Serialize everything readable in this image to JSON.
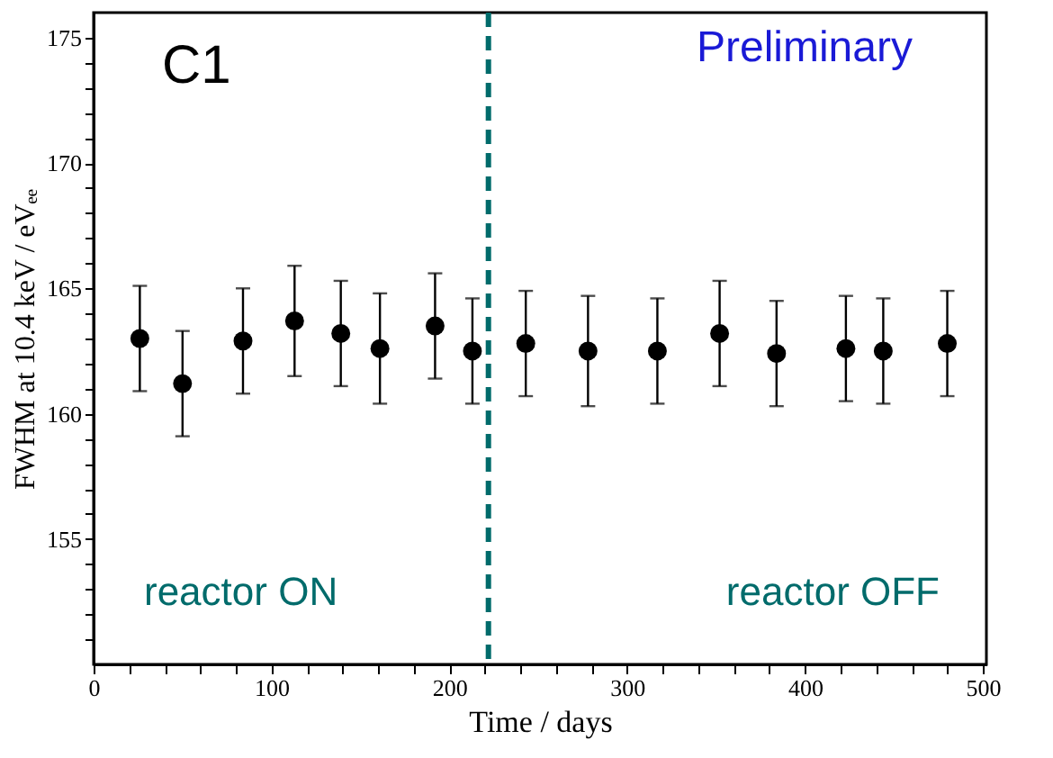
{
  "chart_data": {
    "type": "scatter",
    "xlabel": "Time / days",
    "ylabel": "FWHM at 10.4 keV / eVₑₑ",
    "x": [
      26,
      50,
      84,
      113,
      139,
      161,
      192,
      213,
      243,
      278,
      317,
      352,
      384,
      423,
      444,
      480
    ],
    "series": [
      {
        "color": "#000000",
        "values": [
          163.0,
          161.2,
          162.9,
          163.7,
          163.2,
          162.6,
          163.5,
          162.5,
          162.8,
          162.5,
          162.5,
          163.2,
          162.4,
          162.6,
          162.5,
          162.8
        ],
        "errors": [
          2.1,
          2.1,
          2.1,
          2.2,
          2.1,
          2.2,
          2.1,
          2.1,
          2.1,
          2.2,
          2.1,
          2.1,
          2.1,
          2.1,
          2.1,
          2.1
        ]
      }
    ],
    "marker": "circle",
    "xlim": [
      0,
      502
    ],
    "ylim": [
      150,
      176
    ],
    "xticks": [
      0,
      {
        "value": 20,
        "label": null
      },
      {
        "value": 40,
        "label": null
      },
      {
        "value": 60,
        "label": null
      },
      {
        "value": 80,
        "label": null
      },
      100,
      {
        "value": 120,
        "label": null
      },
      {
        "value": 140,
        "label": null
      },
      {
        "value": 160,
        "label": null
      },
      {
        "value": 180,
        "label": null
      },
      200,
      {
        "value": 220,
        "label": null
      },
      {
        "value": 240,
        "label": null
      },
      {
        "value": 260,
        "label": null
      },
      {
        "value": 280,
        "label": null
      },
      300,
      {
        "value": 320,
        "label": null
      },
      {
        "value": 340,
        "label": null
      },
      {
        "value": 360,
        "label": null
      },
      {
        "value": 380,
        "label": null
      },
      400,
      {
        "value": 420,
        "label": null
      },
      {
        "value": 440,
        "label": null
      },
      {
        "value": 460,
        "label": null
      },
      {
        "value": 480,
        "label": null
      },
      500
    ],
    "yticks": [
      {
        "value": 151,
        "label": null
      },
      {
        "value": 152,
        "label": null
      },
      {
        "value": 153,
        "label": null
      },
      {
        "value": 154,
        "label": null
      },
      155,
      {
        "value": 156,
        "label": null
      },
      {
        "value": 157,
        "label": null
      },
      {
        "value": 158,
        "label": null
      },
      {
        "value": 159,
        "label": null
      },
      160,
      {
        "value": 161,
        "label": null
      },
      {
        "value": 162,
        "label": null
      },
      {
        "value": 163,
        "label": null
      },
      {
        "value": 164,
        "label": null
      },
      165,
      {
        "value": 166,
        "label": null
      },
      {
        "value": 167,
        "label": null
      },
      {
        "value": 168,
        "label": null
      },
      {
        "value": 169,
        "label": null
      },
      170,
      {
        "value": 171,
        "label": null
      },
      {
        "value": 172,
        "label": null
      },
      {
        "value": 173,
        "label": null
      },
      {
        "value": 174,
        "label": null
      },
      175
    ],
    "ref_lines": [
      {
        "axis": "x",
        "value": 222,
        "color": "#006b6b",
        "line_style": "dashed"
      }
    ],
    "annotations": [
      "C1",
      "Preliminary",
      "reactor ON",
      "reactor OFF"
    ],
    "grid": false
  }
}
